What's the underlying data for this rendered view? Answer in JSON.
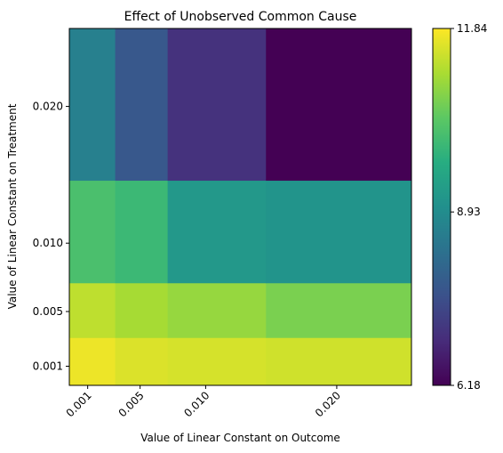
{
  "chart_data": {
    "type": "heatmap",
    "title": "Effect of Unobserved Common Cause",
    "xlabel": "Value of Linear Constant on Outcome",
    "ylabel": "Value of Linear Constant on Treatment",
    "x_ticks": [
      "0.001",
      "0.005",
      "0.010",
      "0.020"
    ],
    "y_ticks": [
      "0.001",
      "0.005",
      "0.010",
      "0.020"
    ],
    "x_edges": [
      -0.0004,
      0.0031,
      0.0071,
      0.0146,
      0.0257
    ],
    "y_edges": [
      -0.0004,
      0.0031,
      0.0071,
      0.0146,
      0.0257
    ],
    "values": [
      [
        11.7,
        11.55,
        11.5,
        11.45
      ],
      [
        11.3,
        11.1,
        10.95,
        10.7
      ],
      [
        10.2,
        10.0,
        9.2,
        9.1
      ],
      [
        8.65,
        7.75,
        7.0,
        6.18
      ]
    ],
    "colorbar": {
      "min": 6.18,
      "max": 11.84,
      "tick_labels": [
        "11.84",
        "8.93",
        "6.18"
      ],
      "tick_values": [
        11.84,
        8.93,
        6.18
      ],
      "colormap": "viridis"
    }
  }
}
